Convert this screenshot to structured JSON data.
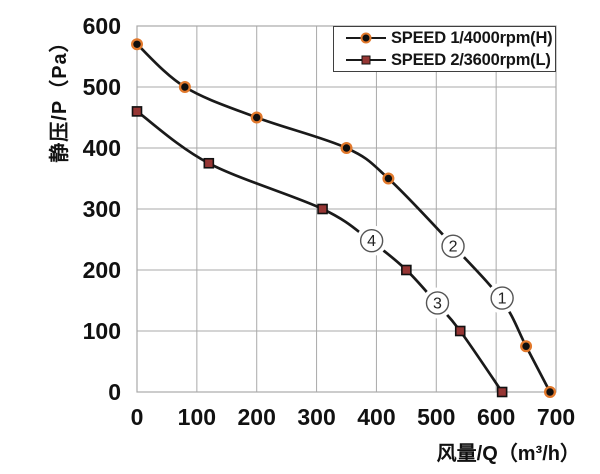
{
  "chart_data": {
    "type": "line",
    "title": "",
    "xlabel": "风量/Q（m³/h）",
    "ylabel": "静压/P（Pa）",
    "xlim": [
      0,
      700
    ],
    "ylim": [
      0,
      600
    ],
    "x_ticks": [
      0,
      100,
      200,
      300,
      400,
      500,
      600,
      700
    ],
    "y_ticks": [
      0,
      100,
      200,
      300,
      400,
      500,
      600
    ],
    "grid": true,
    "legend_position": "top-right",
    "series": [
      {
        "name": "SPEED 1/4000rpm(H)",
        "marker": "circle",
        "line_color": "#1a1a1a",
        "marker_fill": "#0f0f0f",
        "marker_ring": "#e2792c",
        "points": [
          [
            0,
            570
          ],
          [
            80,
            500
          ],
          [
            200,
            450
          ],
          [
            350,
            400
          ],
          [
            420,
            350
          ],
          [
            650,
            75
          ],
          [
            690,
            0
          ]
        ],
        "shape_points": [
          [
            0,
            570
          ],
          [
            80,
            500
          ],
          [
            200,
            450
          ],
          [
            350,
            400
          ],
          [
            420,
            350
          ],
          [
            530,
            238
          ],
          [
            610,
            150
          ],
          [
            650,
            75
          ],
          [
            690,
            0
          ]
        ]
      },
      {
        "name": "SPEED 2/3600rpm(L)",
        "marker": "square",
        "line_color": "#1a1a1a",
        "marker_fill": "#963634",
        "marker_edge": "#111111",
        "points": [
          [
            0,
            460
          ],
          [
            120,
            375
          ],
          [
            310,
            300
          ],
          [
            450,
            200
          ],
          [
            540,
            100
          ],
          [
            610,
            0
          ]
        ],
        "shape_points": [
          [
            0,
            460
          ],
          [
            120,
            375
          ],
          [
            310,
            300
          ],
          [
            390,
            248
          ],
          [
            450,
            200
          ],
          [
            500,
            146
          ],
          [
            540,
            100
          ],
          [
            610,
            0
          ]
        ]
      }
    ],
    "annotations": [
      {
        "label": "1",
        "x": 610,
        "y": 154
      },
      {
        "label": "2",
        "x": 528,
        "y": 239
      },
      {
        "label": "3",
        "x": 502,
        "y": 146
      },
      {
        "label": "4",
        "x": 392,
        "y": 248
      }
    ],
    "colors": {
      "curve": "#1a1a1a",
      "grid": "#a9a9a9",
      "tick_text": "#111111",
      "annotation_stroke": "#555555",
      "marker_orange": "#e2792c",
      "marker_dark_red": "#963634"
    }
  }
}
